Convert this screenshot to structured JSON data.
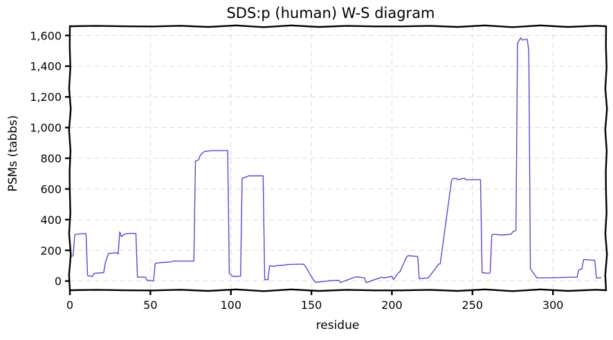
{
  "chart_data": {
    "type": "line",
    "title": "SDS:p (human) W-S diagram",
    "xlabel": "residue",
    "ylabel": "PSMs (tabbs)",
    "xlim": [
      0,
      333
    ],
    "ylim": [
      -60,
      1660
    ],
    "xticks": [
      0,
      50,
      100,
      150,
      200,
      250,
      300
    ],
    "yticks": [
      0,
      200,
      400,
      600,
      800,
      1000,
      1200,
      1400,
      1600
    ],
    "xtick_labels": [
      "0",
      "50",
      "100",
      "150",
      "200",
      "250",
      "300"
    ],
    "ytick_labels": [
      "0",
      "200",
      "400",
      "600",
      "800",
      "1,000",
      "1,200",
      "1,400",
      "1,600"
    ],
    "grid": true,
    "line_color": "#6a3fd0",
    "series": [
      {
        "x": [
          1,
          2,
          3,
          4,
          10,
          11,
          14,
          15,
          21,
          22,
          24,
          25,
          29,
          30,
          31,
          32,
          34,
          36,
          41,
          42,
          47,
          48,
          52,
          53,
          55,
          56,
          63,
          64,
          77,
          78,
          80,
          81,
          83,
          84,
          87,
          88,
          98,
          99,
          101,
          102,
          106,
          107,
          110,
          111,
          120,
          121,
          123,
          124,
          127,
          128,
          134,
          135,
          145,
          146,
          152,
          153,
          160,
          161,
          167,
          168,
          177,
          178,
          183,
          184,
          187,
          188,
          194,
          195,
          200,
          201,
          204,
          205,
          209,
          210,
          216,
          217,
          222,
          223,
          229,
          230,
          237,
          238,
          240,
          241,
          245,
          246,
          255,
          256,
          260,
          261,
          261.5,
          262,
          263,
          268,
          269,
          274,
          275,
          277,
          278,
          280,
          281,
          283,
          284,
          285,
          286,
          289,
          290,
          300,
          315,
          316,
          318,
          319,
          326,
          327,
          330
        ],
        "y": [
          160,
          165,
          300,
          305,
          310,
          35,
          30,
          50,
          55,
          120,
          180,
          180,
          185,
          175,
          320,
          290,
          305,
          310,
          310,
          25,
          25,
          5,
          0,
          115,
          118,
          120,
          125,
          130,
          130,
          780,
          790,
          820,
          840,
          845,
          848,
          850,
          850,
          50,
          32,
          30,
          32,
          670,
          680,
          685,
          685,
          10,
          8,
          100,
          95,
          100,
          105,
          108,
          110,
          100,
          -5,
          -8,
          0,
          2,
          5,
          -10,
          25,
          28,
          20,
          -10,
          0,
          5,
          25,
          20,
          30,
          10,
          55,
          60,
          155,
          165,
          160,
          15,
          20,
          25,
          110,
          112,
          655,
          668,
          668,
          660,
          670,
          660,
          660,
          55,
          50,
          55,
          170,
          300,
          305,
          300,
          300,
          305,
          320,
          330,
          1550,
          1585,
          1570,
          1575,
          1575,
          1500,
          80,
          35,
          20,
          22,
          25,
          72,
          80,
          140,
          135,
          20,
          22
        ]
      }
    ]
  }
}
